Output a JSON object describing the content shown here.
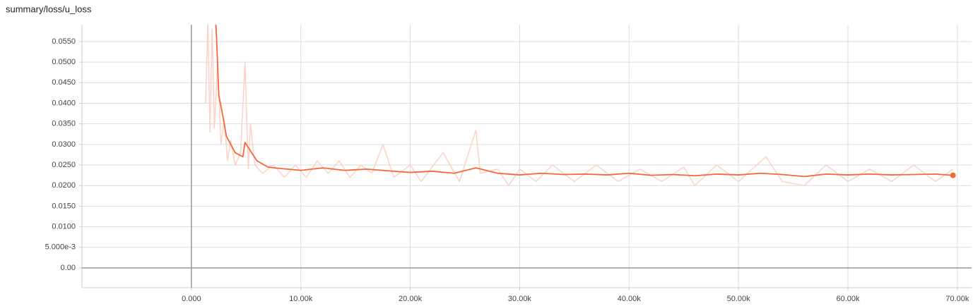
{
  "chart_data": {
    "type": "line",
    "title": "summary/loss/u_loss",
    "xlim": [
      -10000,
      71300
    ],
    "ylim": [
      -0.0048,
      0.0591
    ],
    "xticks": [
      {
        "value": 0,
        "label": "0.000"
      },
      {
        "value": 10000,
        "label": "10.00k"
      },
      {
        "value": 20000,
        "label": "20.00k"
      },
      {
        "value": 30000,
        "label": "30.00k"
      },
      {
        "value": 40000,
        "label": "40.00k"
      },
      {
        "value": 50000,
        "label": "50.00k"
      },
      {
        "value": 60000,
        "label": "60.00k"
      },
      {
        "value": 70000,
        "label": "70.00k"
      }
    ],
    "yticks": [
      {
        "value": 0,
        "label": "0.00"
      },
      {
        "value": 0.005,
        "label": "5.000e-3"
      },
      {
        "value": 0.01,
        "label": "0.0100"
      },
      {
        "value": 0.015,
        "label": "0.0150"
      },
      {
        "value": 0.02,
        "label": "0.0200"
      },
      {
        "value": 0.025,
        "label": "0.0250"
      },
      {
        "value": 0.03,
        "label": "0.0300"
      },
      {
        "value": 0.035,
        "label": "0.0350"
      },
      {
        "value": 0.04,
        "label": "0.0400"
      },
      {
        "value": 0.045,
        "label": "0.0450"
      },
      {
        "value": 0.05,
        "label": "0.0500"
      },
      {
        "value": 0.055,
        "label": "0.0550"
      }
    ],
    "grid": true,
    "series": [
      {
        "color": "#fbd3c6",
        "x": [
          1300,
          1500,
          1700,
          1900,
          2100,
          2400,
          2700,
          3000,
          3300,
          3600,
          4000,
          4500,
          4900,
          5200,
          5400,
          5800,
          6500,
          7500,
          8500,
          9500,
          10500,
          11500,
          12500,
          13500,
          14500,
          15500,
          16500,
          17500,
          18500,
          20000,
          21000,
          23000,
          24500,
          26000,
          26400,
          28000,
          29000,
          30000,
          31500,
          33000,
          35000,
          37000,
          39000,
          41000,
          43000,
          45000,
          46000,
          48000,
          50000,
          52500,
          54000,
          56000,
          58000,
          60000,
          62000,
          64000,
          66000,
          68000,
          69600
        ],
        "values": [
          0.04,
          0.06,
          0.033,
          0.058,
          0.034,
          0.05,
          0.03,
          0.036,
          0.026,
          0.031,
          0.025,
          0.028,
          0.05,
          0.024,
          0.035,
          0.025,
          0.023,
          0.025,
          0.022,
          0.025,
          0.022,
          0.026,
          0.023,
          0.026,
          0.022,
          0.025,
          0.023,
          0.03,
          0.022,
          0.025,
          0.021,
          0.028,
          0.021,
          0.0335,
          0.023,
          0.024,
          0.02,
          0.024,
          0.021,
          0.025,
          0.021,
          0.025,
          0.021,
          0.024,
          0.021,
          0.0245,
          0.02,
          0.025,
          0.021,
          0.027,
          0.021,
          0.02,
          0.025,
          0.021,
          0.024,
          0.021,
          0.025,
          0.021,
          0.024
        ]
      },
      {
        "color": "#f4683b",
        "x": [
          2000,
          2300,
          2500,
          2800,
          3200,
          4000,
          4700,
          4900,
          5500,
          6000,
          7000,
          8000,
          10000,
          12000,
          14000,
          16000,
          18000,
          20000,
          22000,
          24000,
          26000,
          28000,
          30000,
          32000,
          34000,
          36000,
          38000,
          40000,
          42000,
          44000,
          46000,
          48000,
          50000,
          52000,
          54000,
          56000,
          58000,
          60000,
          62000,
          64000,
          66000,
          68000,
          69600
        ],
        "values": [
          0.07,
          0.056,
          0.042,
          0.038,
          0.032,
          0.028,
          0.027,
          0.0305,
          0.028,
          0.026,
          0.0245,
          0.0242,
          0.0237,
          0.0243,
          0.0237,
          0.024,
          0.0236,
          0.0232,
          0.0235,
          0.023,
          0.0243,
          0.023,
          0.0226,
          0.023,
          0.0227,
          0.0228,
          0.0226,
          0.023,
          0.0225,
          0.0227,
          0.0224,
          0.0228,
          0.0226,
          0.023,
          0.0227,
          0.0222,
          0.0228,
          0.0226,
          0.0228,
          0.0226,
          0.0227,
          0.0228,
          0.0225
        ]
      }
    ]
  }
}
